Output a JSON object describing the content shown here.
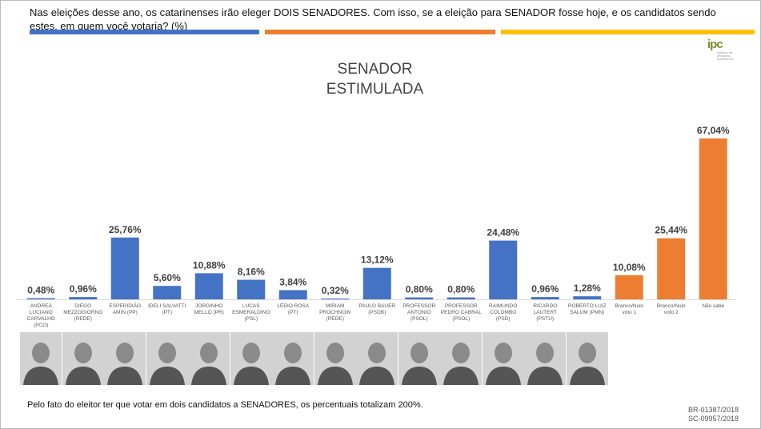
{
  "header": {
    "question": "Nas eleições desse ano, os catarinenses irão eleger DOIS SENADORES. Com isso, se a eleição para SENADOR fosse hoje, e os candidatos sendo estes, em quem você votaria? (%)"
  },
  "stripes": [
    "#4472C4",
    "#ED7D31",
    "#FFC000"
  ],
  "logo": {
    "mark": "ipc",
    "subtitle": "instituto de pesquisa catarinense"
  },
  "chart_data": {
    "type": "bar",
    "title_line1": "SENADOR",
    "title_line2": "ESTIMULADA",
    "categories": [
      "ANDREÁ LUCIANO CARVALHO (PCO)",
      "DIEGO MEZZOGIORNO (REDE)",
      "ESPERIDIÃO AMIN (PP)",
      "IDELI SALVATTI (PT)",
      "JORGINHO MELLO (PR)",
      "LUCAS ESMERALDINO (PSL)",
      "LÉDIO ROSA (PT)",
      "MIRIAM PROCHNOW (REDE)",
      "PAULO BAUER (PSDB)",
      "PROFESSOR ANTONIO (PSOL)",
      "PROFESSOR PEDRO CABRAL (PSOL)",
      "RAIMUNDO COLOMBO (PSD)",
      "RICARDO LAUTERT (PSTU)",
      "ROBERTO LUIZ SALUM (PMN)",
      "Branco/Nulo voto 1",
      "Branco/Nulo voto 2",
      "Não sabe"
    ],
    "category_lines": [
      [
        "ANDREÁ",
        "LUCIANO",
        "CARVALHO",
        "(PCO)"
      ],
      [
        "DIEGO",
        "MEZZOGIORNO",
        "(REDE)"
      ],
      [
        "ESPERIDIÃO",
        "AMIN (PP)"
      ],
      [
        "IDELI SALVATTI",
        "(PT)"
      ],
      [
        "JORGINHO",
        "MELLO (PR)"
      ],
      [
        "LUCAS",
        "ESMERALDINO",
        "(PSL)"
      ],
      [
        "LÉDIO ROSA",
        "(PT)"
      ],
      [
        "MIRIAM",
        "PROCHNOW",
        "(REDE)"
      ],
      [
        "PAULO BAUER",
        "(PSDB)"
      ],
      [
        "PROFESSOR",
        "ANTONIO",
        "(PSOL)"
      ],
      [
        "PROFESSOR",
        "PEDRO CABRAL",
        "(PSOL)"
      ],
      [
        "RAIMUNDO",
        "COLOMBO",
        "(PSD)"
      ],
      [
        "RICARDO",
        "LAUTERT",
        "(PSTU)"
      ],
      [
        "ROBERTO LUIZ",
        "SALUM (PMN)"
      ],
      [
        "Branco/Nulo",
        "voto 1"
      ],
      [
        "Branco/Nulo",
        "voto 2"
      ],
      [
        "Não sabe"
      ]
    ],
    "values": [
      0.48,
      0.96,
      25.76,
      5.6,
      10.88,
      8.16,
      3.84,
      0.32,
      13.12,
      0.8,
      0.8,
      24.48,
      0.96,
      1.28,
      10.08,
      25.44,
      67.04
    ],
    "value_labels": [
      "0,48%",
      "0,96%",
      "25,76%",
      "5,60%",
      "10,88%",
      "8,16%",
      "3,84%",
      "0,32%",
      "13,12%",
      "0,80%",
      "0,80%",
      "24,48%",
      "0,96%",
      "1,28%",
      "10,08%",
      "25,44%",
      "67,04%"
    ],
    "colors": {
      "candidate": "#4472C4",
      "other": "#ED7D31"
    },
    "bar_color_keys": [
      "candidate",
      "candidate",
      "candidate",
      "candidate",
      "candidate",
      "candidate",
      "candidate",
      "candidate",
      "candidate",
      "candidate",
      "candidate",
      "candidate",
      "candidate",
      "candidate",
      "other",
      "other",
      "other"
    ],
    "ylim": [
      0,
      67.04
    ],
    "grid": false,
    "legend": "none"
  },
  "footnote": "Pelo fato do eleitor ter que votar em dois candidatos a SENADORES, os percentuais totalizam 200%.",
  "registrations": [
    "BR-01387/2018",
    "SC-09957/2018"
  ]
}
